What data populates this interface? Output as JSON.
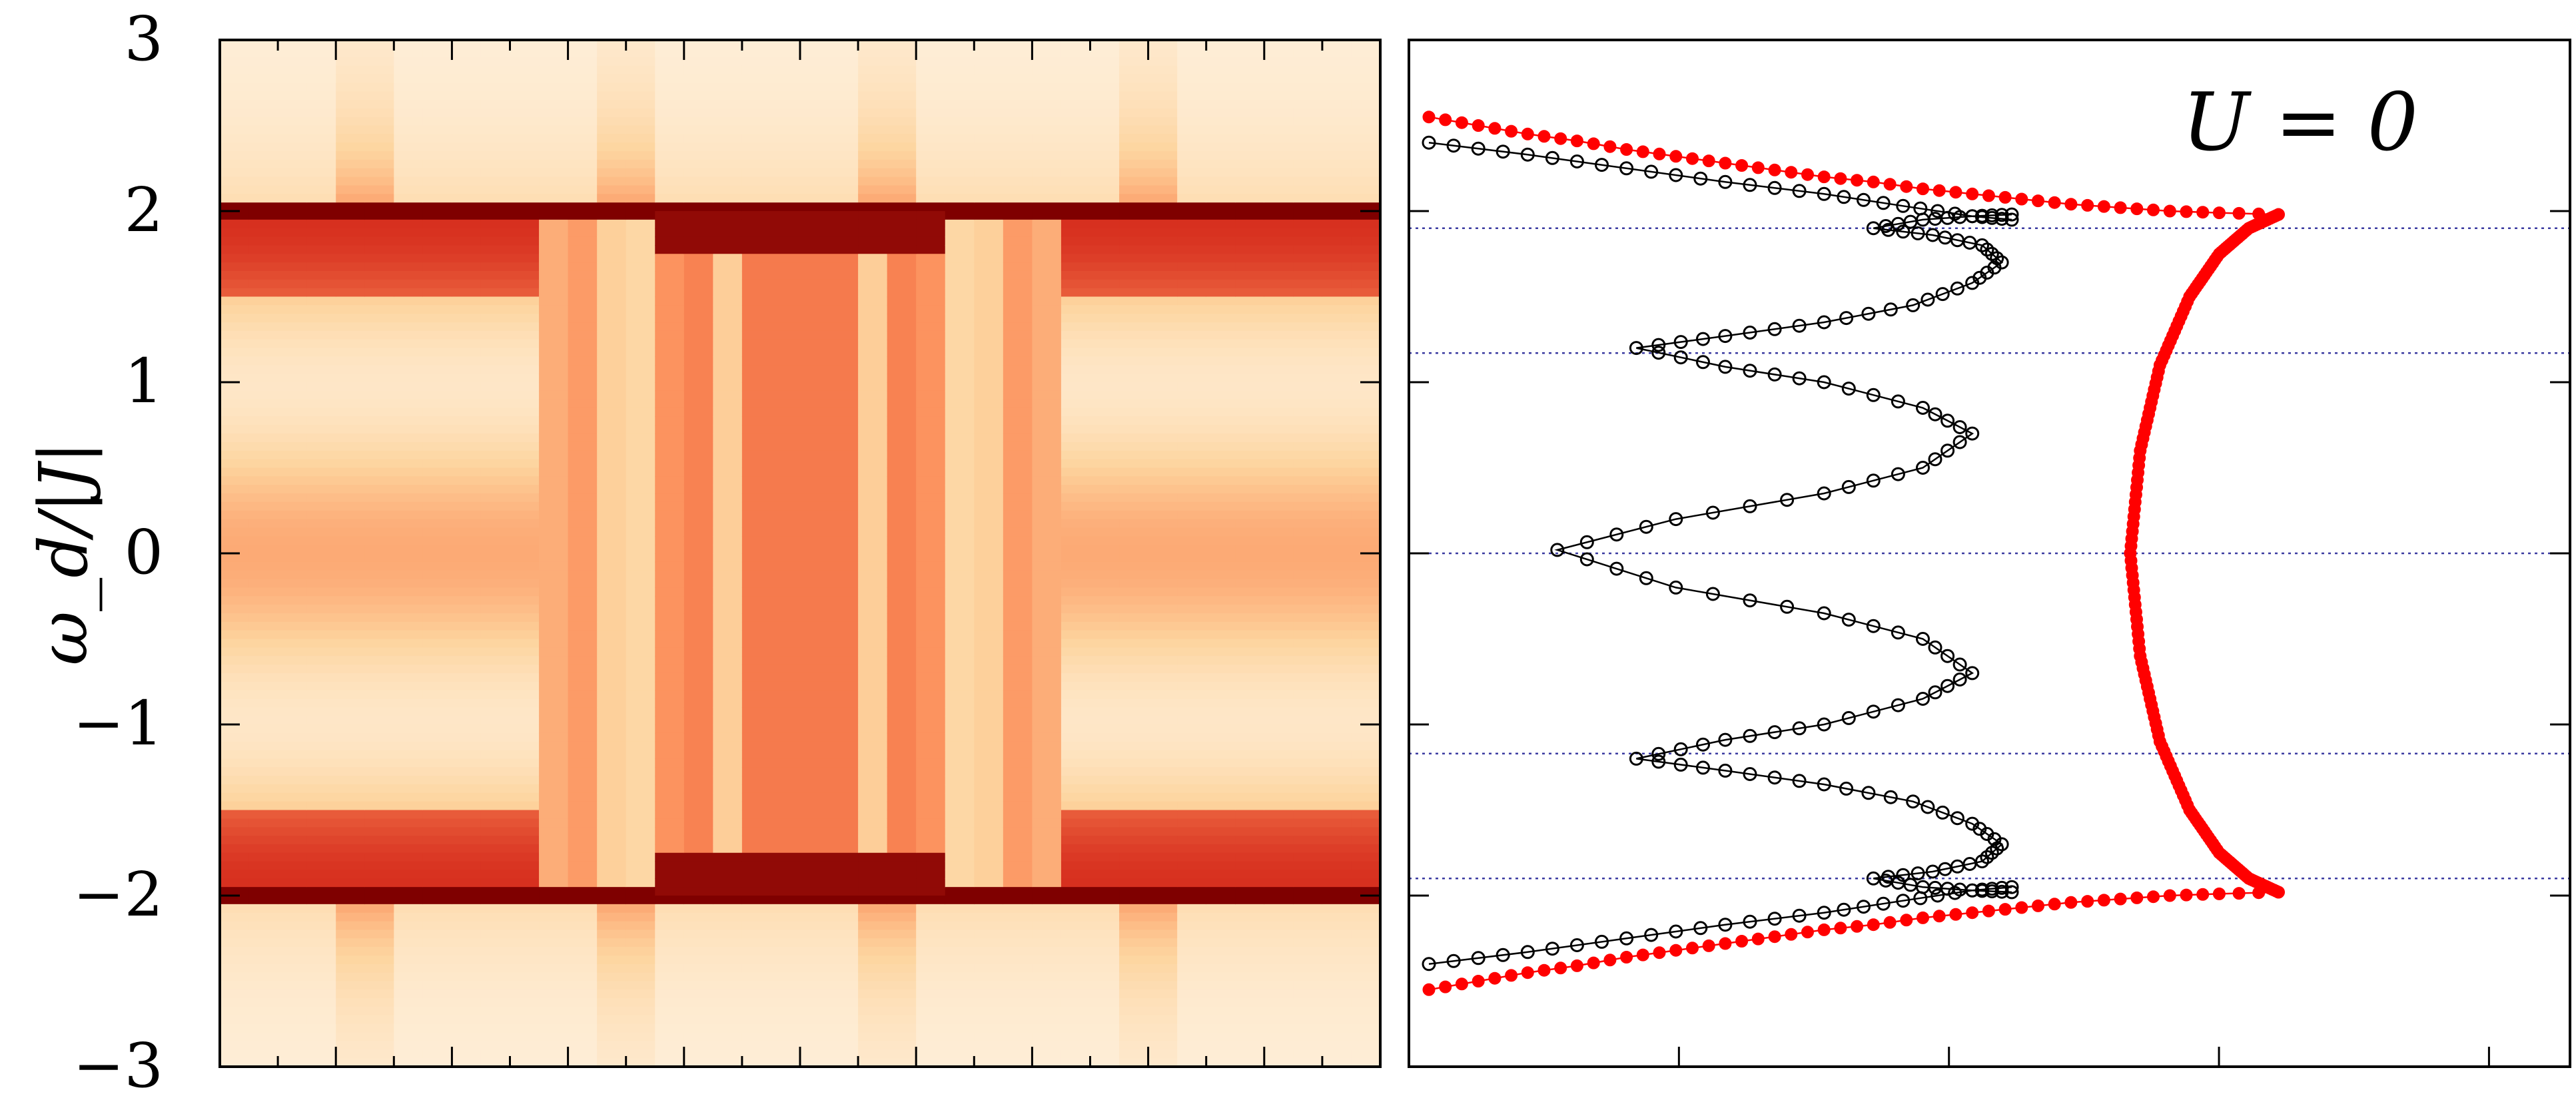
{
  "chart_data": [
    {
      "type": "heatmap",
      "ylabel": "ω_d/|J|",
      "ylim": [
        -3,
        3
      ],
      "yticks": [
        3,
        2,
        1,
        0,
        -1,
        -2,
        -3
      ],
      "ytick_labels": [
        "3",
        "2",
        "1",
        "0",
        "−1",
        "−2",
        "−3"
      ],
      "colormap": [
        "#fff7ec",
        "#fdd49e",
        "#fc8d59",
        "#d7301f",
        "#7f0000"
      ],
      "x_column_centers": [
        0.25,
        0.75,
        1.25,
        1.75,
        2.25,
        2.75,
        3.25,
        3.75,
        4.25,
        4.75,
        5.25,
        5.75,
        6.25,
        6.75,
        7.25,
        7.75,
        8.25,
        8.75,
        9.25,
        9.75,
        10.25,
        10.75,
        11.25,
        11.75,
        12.25,
        12.75,
        13.25,
        13.75,
        14.25,
        14.75,
        15.25,
        15.75,
        16.25,
        16.75,
        17.25,
        17.75,
        18.25,
        18.75,
        19.25,
        19.75
      ],
      "band_edge": [
        2.0,
        -2.0
      ],
      "grid": false
    },
    {
      "type": "scatter",
      "annotation": "U = 0",
      "ylim": [
        -3,
        3
      ],
      "xlim": [
        0,
        1
      ],
      "reference_lines_y": [
        1.9,
        1.17,
        0,
        -1.17,
        -1.9
      ],
      "series": [
        {
          "color": "#ff0000",
          "marker": "filled-circle",
          "points_outer_upper": [
            [
              0.0,
              2.55
            ],
            [
              0.05,
              2.5
            ],
            [
              0.1,
              2.45
            ],
            [
              0.15,
              2.41
            ],
            [
              0.2,
              2.36
            ],
            [
              0.25,
              2.32
            ],
            [
              0.3,
              2.28
            ],
            [
              0.35,
              2.24
            ],
            [
              0.4,
              2.2
            ],
            [
              0.45,
              2.17
            ],
            [
              0.5,
              2.13
            ],
            [
              0.55,
              2.1
            ],
            [
              0.6,
              2.07
            ],
            [
              0.65,
              2.04
            ],
            [
              0.7,
              2.02
            ],
            [
              0.75,
              2.0
            ],
            [
              0.8,
              1.99
            ],
            [
              0.86,
              1.98
            ]
          ],
          "points_outer_lower": [
            [
              0.0,
              -2.55
            ],
            [
              0.05,
              -2.5
            ],
            [
              0.1,
              -2.45
            ],
            [
              0.15,
              -2.41
            ],
            [
              0.2,
              -2.36
            ],
            [
              0.25,
              -2.32
            ],
            [
              0.3,
              -2.28
            ],
            [
              0.35,
              -2.24
            ],
            [
              0.4,
              -2.2
            ],
            [
              0.45,
              -2.17
            ],
            [
              0.5,
              -2.13
            ],
            [
              0.55,
              -2.1
            ],
            [
              0.6,
              -2.07
            ],
            [
              0.65,
              -2.04
            ],
            [
              0.7,
              -2.02
            ],
            [
              0.75,
              -2.0
            ],
            [
              0.8,
              -1.99
            ],
            [
              0.86,
              -1.98
            ]
          ],
          "points_arc": [
            [
              0.86,
              1.98
            ],
            [
              0.83,
              1.9
            ],
            [
              0.8,
              1.75
            ],
            [
              0.77,
              1.5
            ],
            [
              0.74,
              1.1
            ],
            [
              0.72,
              0.6
            ],
            [
              0.71,
              0.0
            ],
            [
              0.72,
              -0.6
            ],
            [
              0.74,
              -1.1
            ],
            [
              0.77,
              -1.5
            ],
            [
              0.8,
              -1.75
            ],
            [
              0.83,
              -1.9
            ],
            [
              0.86,
              -1.98
            ]
          ]
        },
        {
          "color": "#000000",
          "marker": "open-circle",
          "points_outer_upper": [
            [
              0.0,
              2.4
            ],
            [
              0.1,
              2.33
            ],
            [
              0.2,
              2.25
            ],
            [
              0.3,
              2.17
            ],
            [
              0.4,
              2.1
            ],
            [
              0.48,
              2.03
            ],
            [
              0.55,
              1.97
            ],
            [
              0.59,
              1.95
            ]
          ],
          "points_outer_lower": [
            [
              0.0,
              -2.4
            ],
            [
              0.1,
              -2.33
            ],
            [
              0.2,
              -2.25
            ],
            [
              0.3,
              -2.17
            ],
            [
              0.4,
              -2.1
            ],
            [
              0.48,
              -2.03
            ],
            [
              0.55,
              -1.97
            ],
            [
              0.59,
              -1.95
            ]
          ],
          "points_inner": [
            [
              0.59,
              1.98
            ],
            [
              0.55,
              1.97
            ],
            [
              0.5,
              1.95
            ],
            [
              0.45,
              1.9
            ],
            [
              0.51,
              1.86
            ],
            [
              0.56,
              1.8
            ],
            [
              0.58,
              1.7
            ],
            [
              0.55,
              1.58
            ],
            [
              0.49,
              1.45
            ],
            [
              0.4,
              1.35
            ],
            [
              0.3,
              1.27
            ],
            [
              0.21,
              1.2
            ],
            [
              0.3,
              1.09
            ],
            [
              0.4,
              1.0
            ],
            [
              0.5,
              0.85
            ],
            [
              0.55,
              0.7
            ],
            [
              0.5,
              0.5
            ],
            [
              0.4,
              0.35
            ],
            [
              0.25,
              0.2
            ],
            [
              0.13,
              0.02
            ],
            [
              0.25,
              -0.2
            ],
            [
              0.4,
              -0.35
            ],
            [
              0.5,
              -0.5
            ],
            [
              0.55,
              -0.7
            ],
            [
              0.5,
              -0.85
            ],
            [
              0.4,
              -1.0
            ],
            [
              0.3,
              -1.09
            ],
            [
              0.21,
              -1.2
            ],
            [
              0.3,
              -1.27
            ],
            [
              0.4,
              -1.35
            ],
            [
              0.49,
              -1.45
            ],
            [
              0.55,
              -1.58
            ],
            [
              0.58,
              -1.7
            ],
            [
              0.56,
              -1.8
            ],
            [
              0.51,
              -1.86
            ],
            [
              0.45,
              -1.9
            ],
            [
              0.5,
              -1.95
            ],
            [
              0.55,
              -1.97
            ],
            [
              0.59,
              -1.98
            ]
          ]
        }
      ],
      "grid": false
    }
  ]
}
